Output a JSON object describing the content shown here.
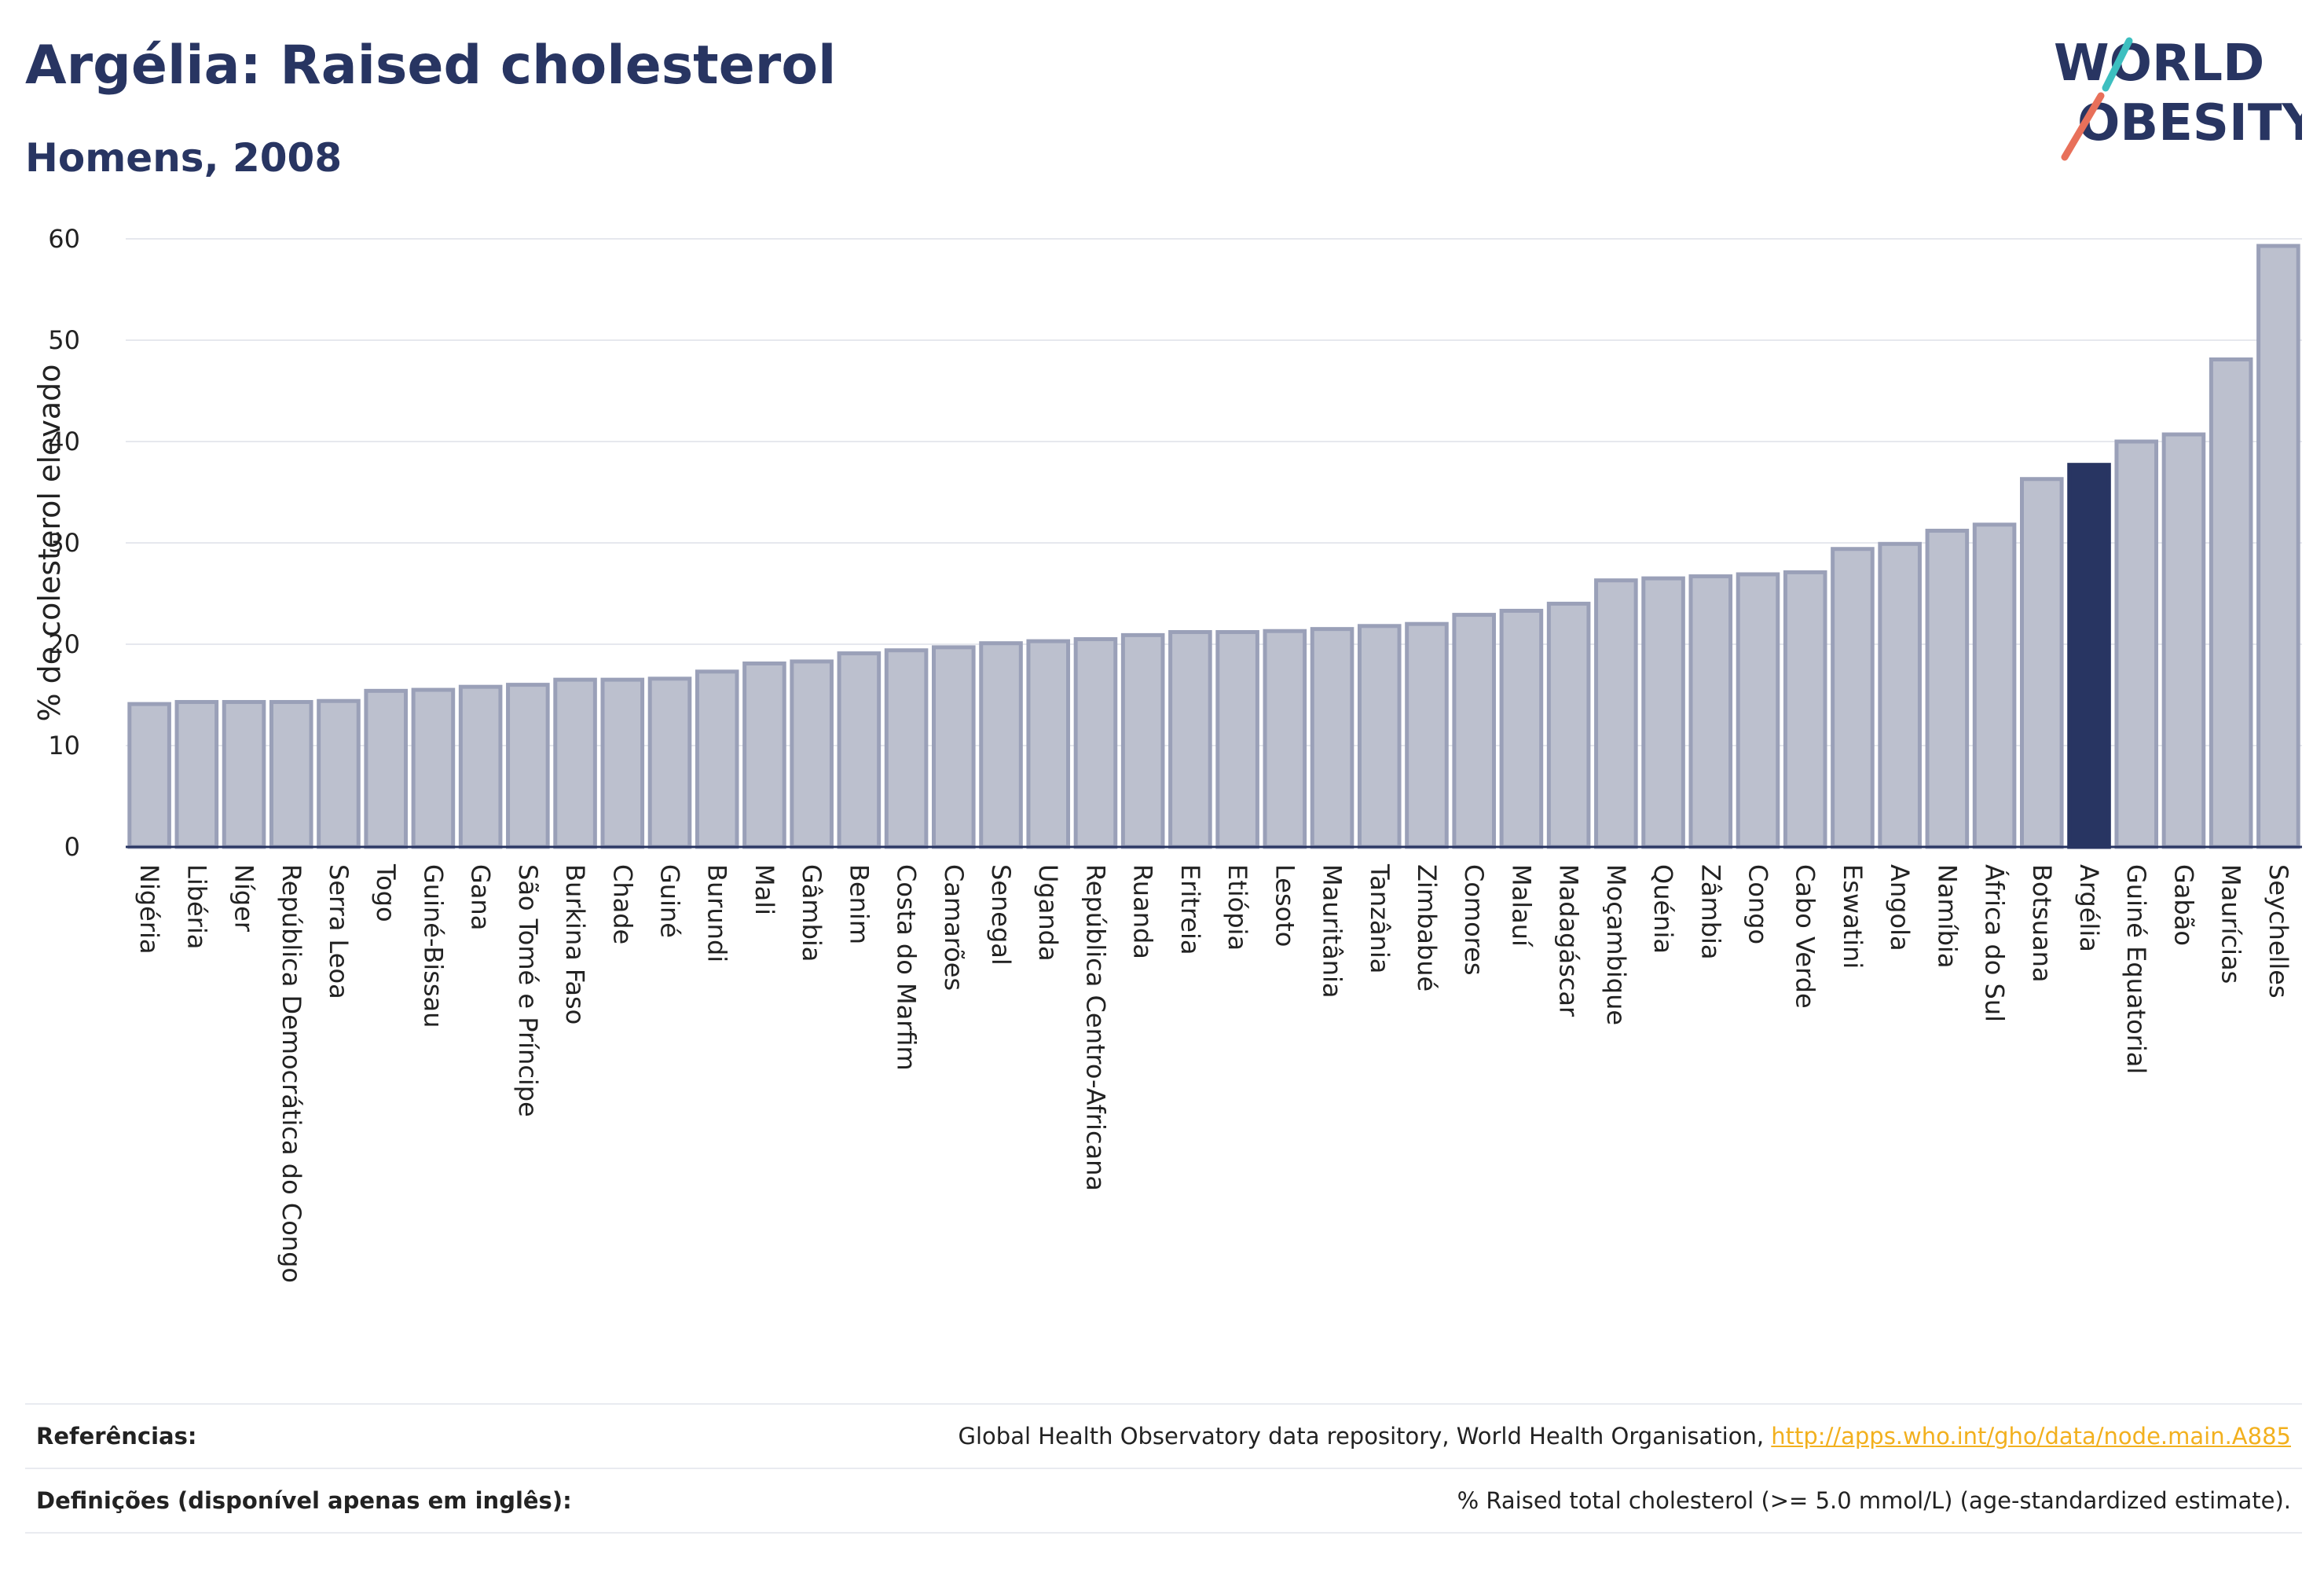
{
  "header": {
    "title": "Argélia: Raised cholesterol",
    "subtitle": "Homens, 2008"
  },
  "logo": {
    "line1": "WORLD",
    "line2": "OBESITY"
  },
  "colors": {
    "bar_default": "#bcc0ce",
    "bar_default_border": "#9aa0b8",
    "bar_highlight": "#283562",
    "title": "#283562",
    "link": "#f2b01e"
  },
  "chart_data": {
    "type": "bar",
    "ylabel": "% de colesterol elevado",
    "xlabel": "",
    "ylim": [
      0,
      60
    ],
    "yticks": [
      0,
      10,
      20,
      30,
      40,
      50,
      60
    ],
    "grid": true,
    "highlight": "Argélia",
    "categories": [
      "Nigéria",
      "Libéria",
      "Níger",
      "República Democrática do Congo",
      "Serra Leoa",
      "Togo",
      "Guiné-Bissau",
      "Gana",
      "São Tomé e Príncipe",
      "Burkina Faso",
      "Chade",
      "Guiné",
      "Burundi",
      "Mali",
      "Gâmbia",
      "Benim",
      "Costa do Marfim",
      "Camarões",
      "Senegal",
      "Uganda",
      "República Centro-Africana",
      "Ruanda",
      "Eritreia",
      "Etiópia",
      "Lesoto",
      "Mauritânia",
      "Tanzânia",
      "Zimbabué",
      "Comores",
      "Malauí",
      "Madagáscar",
      "Moçambique",
      "Quénia",
      "Zâmbia",
      "Congo",
      "Cabo Verde",
      "Eswatini",
      "Angola",
      "Namíbia",
      "África do Sul",
      "Botsuana",
      "Argélia",
      "Guiné Equatorial",
      "Gabão",
      "Maurícias",
      "Seychelles"
    ],
    "values": [
      14.1,
      14.3,
      14.3,
      14.3,
      14.4,
      15.4,
      15.5,
      15.8,
      16.0,
      16.5,
      16.5,
      16.6,
      17.3,
      18.1,
      18.3,
      19.1,
      19.4,
      19.7,
      20.1,
      20.3,
      20.5,
      20.9,
      21.2,
      21.2,
      21.3,
      21.5,
      21.8,
      22.0,
      22.9,
      23.3,
      24.0,
      26.3,
      26.5,
      26.7,
      26.9,
      27.1,
      29.4,
      29.9,
      31.2,
      31.8,
      36.3,
      37.7,
      40.0,
      40.7,
      48.1,
      59.3
    ]
  },
  "footer": {
    "references_label": "Referências:",
    "references_text": "Global Health Observatory data repository, World Health Organisation, ",
    "references_link": "http://apps.who.int/gho/data/node.main.A885",
    "definitions_label": "Definições (disponível apenas em inglês):",
    "definitions_text": "% Raised total cholesterol (>= 5.0 mmol/L) (age-standardized estimate)."
  }
}
